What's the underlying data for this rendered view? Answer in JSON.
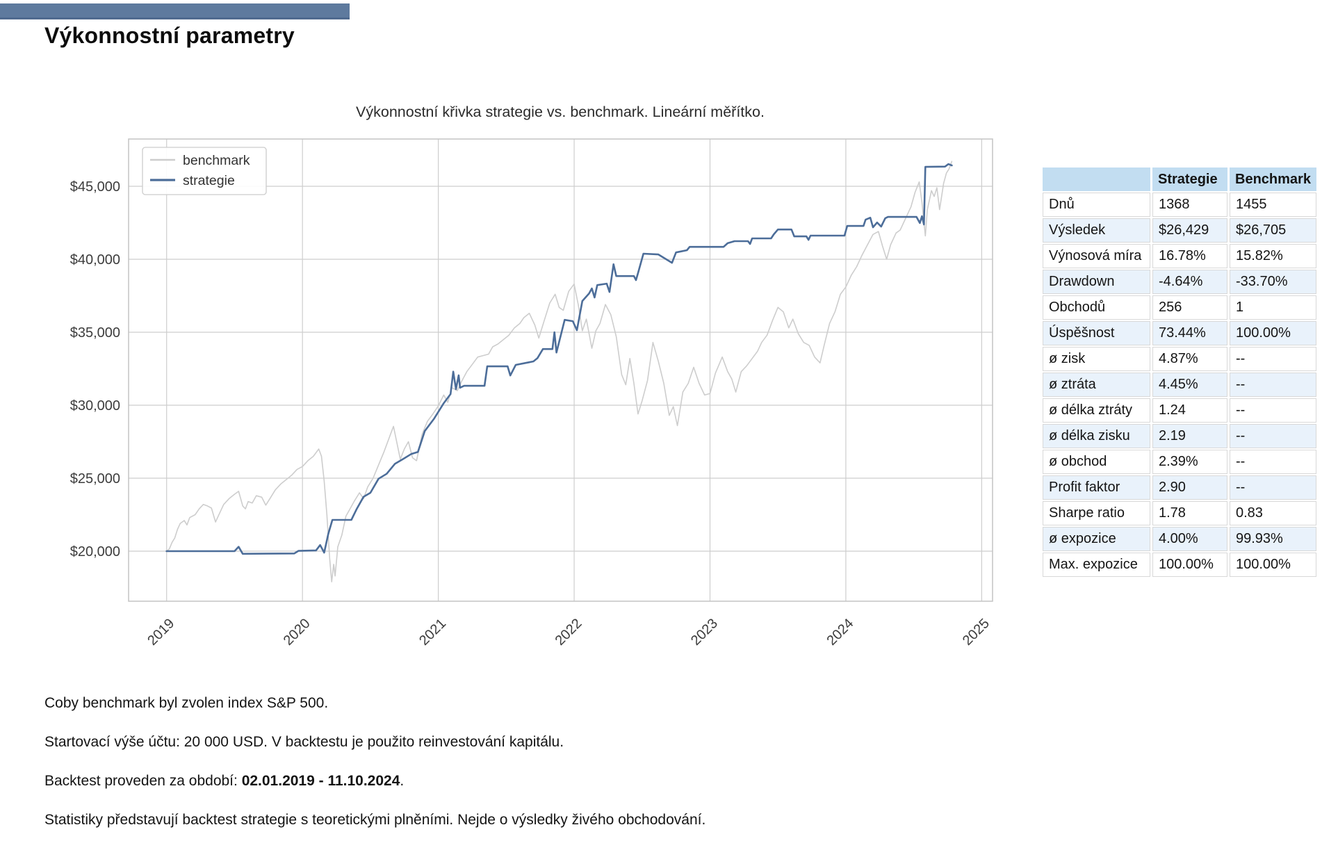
{
  "page": {
    "title": "Výkonnostní parametry"
  },
  "colors": {
    "accent_bar": "#5e7a9e",
    "table_header_bg": "#c2ddf1",
    "table_row_alt_bg": "#e9f2fb",
    "benchmark_line": "#cdcdcd",
    "strategie_line": "#4c6d99"
  },
  "chart_data": {
    "type": "line",
    "title": "Výkonnostní křivka strategie vs. benchmark. Lineární měřítko.",
    "xlabel": "",
    "ylabel": "",
    "grid": true,
    "legend_position": "upper left",
    "xlim": [
      2018.72,
      2025.08
    ],
    "ylim": [
      16570,
      48240
    ],
    "xticks": [
      2019,
      2020,
      2021,
      2022,
      2023,
      2024,
      2025
    ],
    "xticklabels": [
      "2019",
      "2020",
      "2021",
      "2022",
      "2023",
      "2024",
      "2025"
    ],
    "yticks": [
      20000,
      25000,
      30000,
      35000,
      40000,
      45000
    ],
    "yticklabels": [
      "$20,000",
      "$25,000",
      "$30,000",
      "$35,000",
      "$40,000",
      "$45,000"
    ],
    "series": [
      {
        "name": "benchmark",
        "color": "#cdcdcd",
        "points": [
          [
            2019.0,
            20000
          ],
          [
            2019.02,
            20150
          ],
          [
            2019.04,
            20600
          ],
          [
            2019.06,
            20900
          ],
          [
            2019.08,
            21500
          ],
          [
            2019.1,
            21900
          ],
          [
            2019.13,
            22100
          ],
          [
            2019.15,
            21800
          ],
          [
            2019.17,
            22300
          ],
          [
            2019.21,
            22500
          ],
          [
            2019.24,
            22900
          ],
          [
            2019.27,
            23200
          ],
          [
            2019.3,
            23100
          ],
          [
            2019.33,
            22950
          ],
          [
            2019.36,
            22000
          ],
          [
            2019.38,
            22400
          ],
          [
            2019.42,
            23200
          ],
          [
            2019.46,
            23600
          ],
          [
            2019.5,
            23900
          ],
          [
            2019.53,
            24100
          ],
          [
            2019.56,
            23100
          ],
          [
            2019.58,
            22900
          ],
          [
            2019.6,
            23400
          ],
          [
            2019.63,
            23300
          ],
          [
            2019.66,
            23800
          ],
          [
            2019.7,
            23700
          ],
          [
            2019.73,
            23150
          ],
          [
            2019.76,
            23600
          ],
          [
            2019.8,
            24200
          ],
          [
            2019.84,
            24600
          ],
          [
            2019.88,
            24900
          ],
          [
            2019.92,
            25200
          ],
          [
            2019.96,
            25600
          ],
          [
            2020.0,
            25800
          ],
          [
            2020.04,
            26200
          ],
          [
            2020.08,
            26500
          ],
          [
            2020.12,
            27000
          ],
          [
            2020.14,
            26500
          ],
          [
            2020.16,
            24800
          ],
          [
            2020.18,
            22500
          ],
          [
            2020.2,
            19500
          ],
          [
            2020.215,
            17900
          ],
          [
            2020.23,
            19100
          ],
          [
            2020.24,
            18300
          ],
          [
            2020.26,
            20300
          ],
          [
            2020.29,
            21100
          ],
          [
            2020.32,
            22400
          ],
          [
            2020.35,
            22900
          ],
          [
            2020.38,
            23400
          ],
          [
            2020.42,
            24000
          ],
          [
            2020.45,
            23600
          ],
          [
            2020.48,
            24400
          ],
          [
            2020.52,
            25000
          ],
          [
            2020.56,
            25900
          ],
          [
            2020.6,
            26800
          ],
          [
            2020.64,
            27800
          ],
          [
            2020.67,
            28550
          ],
          [
            2020.7,
            27200
          ],
          [
            2020.72,
            26300
          ],
          [
            2020.75,
            27000
          ],
          [
            2020.78,
            27500
          ],
          [
            2020.81,
            26400
          ],
          [
            2020.84,
            26200
          ],
          [
            2020.88,
            28000
          ],
          [
            2020.92,
            28900
          ],
          [
            2020.96,
            29400
          ],
          [
            2021.0,
            29950
          ],
          [
            2021.04,
            30700
          ],
          [
            2021.07,
            30200
          ],
          [
            2021.1,
            31200
          ],
          [
            2021.14,
            31000
          ],
          [
            2021.17,
            31600
          ],
          [
            2021.21,
            32300
          ],
          [
            2021.25,
            32800
          ],
          [
            2021.29,
            33300
          ],
          [
            2021.33,
            33400
          ],
          [
            2021.37,
            33500
          ],
          [
            2021.4,
            34000
          ],
          [
            2021.44,
            34200
          ],
          [
            2021.48,
            34500
          ],
          [
            2021.52,
            34800
          ],
          [
            2021.56,
            35300
          ],
          [
            2021.6,
            35600
          ],
          [
            2021.63,
            36000
          ],
          [
            2021.67,
            36300
          ],
          [
            2021.71,
            35500
          ],
          [
            2021.74,
            34600
          ],
          [
            2021.78,
            35800
          ],
          [
            2021.82,
            37000
          ],
          [
            2021.86,
            37600
          ],
          [
            2021.89,
            36700
          ],
          [
            2021.92,
            36500
          ],
          [
            2021.96,
            37800
          ],
          [
            2022.0,
            38300
          ],
          [
            2022.03,
            36900
          ],
          [
            2022.06,
            35100
          ],
          [
            2022.09,
            35900
          ],
          [
            2022.13,
            33900
          ],
          [
            2022.16,
            35100
          ],
          [
            2022.19,
            35600
          ],
          [
            2022.23,
            36900
          ],
          [
            2022.27,
            36200
          ],
          [
            2022.31,
            34700
          ],
          [
            2022.35,
            32100
          ],
          [
            2022.38,
            31400
          ],
          [
            2022.41,
            33200
          ],
          [
            2022.44,
            31500
          ],
          [
            2022.47,
            29400
          ],
          [
            2022.5,
            30300
          ],
          [
            2022.54,
            31700
          ],
          [
            2022.58,
            34300
          ],
          [
            2022.62,
            33000
          ],
          [
            2022.66,
            31500
          ],
          [
            2022.7,
            29300
          ],
          [
            2022.73,
            29900
          ],
          [
            2022.76,
            28600
          ],
          [
            2022.8,
            30900
          ],
          [
            2022.84,
            31500
          ],
          [
            2022.88,
            32600
          ],
          [
            2022.92,
            31500
          ],
          [
            2022.96,
            30700
          ],
          [
            2023.0,
            30800
          ],
          [
            2023.04,
            32200
          ],
          [
            2023.09,
            33300
          ],
          [
            2023.13,
            32300
          ],
          [
            2023.16,
            31800
          ],
          [
            2023.19,
            30900
          ],
          [
            2023.23,
            32300
          ],
          [
            2023.27,
            32700
          ],
          [
            2023.31,
            33200
          ],
          [
            2023.35,
            33700
          ],
          [
            2023.38,
            34300
          ],
          [
            2023.42,
            34800
          ],
          [
            2023.46,
            35800
          ],
          [
            2023.5,
            36700
          ],
          [
            2023.54,
            36400
          ],
          [
            2023.58,
            35300
          ],
          [
            2023.61,
            35900
          ],
          [
            2023.65,
            34900
          ],
          [
            2023.69,
            34300
          ],
          [
            2023.73,
            34100
          ],
          [
            2023.77,
            33300
          ],
          [
            2023.81,
            32900
          ],
          [
            2023.84,
            34100
          ],
          [
            2023.88,
            35600
          ],
          [
            2023.92,
            36400
          ],
          [
            2023.96,
            37600
          ],
          [
            2024.0,
            38100
          ],
          [
            2024.04,
            38900
          ],
          [
            2024.08,
            39500
          ],
          [
            2024.12,
            40300
          ],
          [
            2024.16,
            41000
          ],
          [
            2024.2,
            41700
          ],
          [
            2024.24,
            41900
          ],
          [
            2024.27,
            40900
          ],
          [
            2024.3,
            40000
          ],
          [
            2024.33,
            41000
          ],
          [
            2024.37,
            41800
          ],
          [
            2024.4,
            42000
          ],
          [
            2024.44,
            42800
          ],
          [
            2024.48,
            43600
          ],
          [
            2024.51,
            44600
          ],
          [
            2024.54,
            45300
          ],
          [
            2024.56,
            43900
          ],
          [
            2024.585,
            41600
          ],
          [
            2024.6,
            43400
          ],
          [
            2024.63,
            44700
          ],
          [
            2024.65,
            44300
          ],
          [
            2024.67,
            44900
          ],
          [
            2024.69,
            43400
          ],
          [
            2024.72,
            45200
          ],
          [
            2024.74,
            45900
          ],
          [
            2024.76,
            46200
          ],
          [
            2024.78,
            46705
          ]
        ]
      },
      {
        "name": "strategie",
        "color": "#4c6d99",
        "points": [
          [
            2019.0,
            20000
          ],
          [
            2019.5,
            20000
          ],
          [
            2019.53,
            20300
          ],
          [
            2019.56,
            19820
          ],
          [
            2019.94,
            19840
          ],
          [
            2019.97,
            20020
          ],
          [
            2020.1,
            20050
          ],
          [
            2020.13,
            20420
          ],
          [
            2020.16,
            19900
          ],
          [
            2020.19,
            21180
          ],
          [
            2020.22,
            22140
          ],
          [
            2020.36,
            22140
          ],
          [
            2020.4,
            22900
          ],
          [
            2020.45,
            23730
          ],
          [
            2020.5,
            24000
          ],
          [
            2020.56,
            24960
          ],
          [
            2020.62,
            25300
          ],
          [
            2020.68,
            25980
          ],
          [
            2020.74,
            26310
          ],
          [
            2020.8,
            26650
          ],
          [
            2020.85,
            26800
          ],
          [
            2020.9,
            28230
          ],
          [
            2020.97,
            29090
          ],
          [
            2021.04,
            30140
          ],
          [
            2021.09,
            30760
          ],
          [
            2021.11,
            32300
          ],
          [
            2021.13,
            31100
          ],
          [
            2021.15,
            32050
          ],
          [
            2021.16,
            31200
          ],
          [
            2021.19,
            31330
          ],
          [
            2021.34,
            31330
          ],
          [
            2021.36,
            32660
          ],
          [
            2021.51,
            32660
          ],
          [
            2021.53,
            32040
          ],
          [
            2021.57,
            32760
          ],
          [
            2021.7,
            33000
          ],
          [
            2021.73,
            33230
          ],
          [
            2021.77,
            33850
          ],
          [
            2021.84,
            33850
          ],
          [
            2021.855,
            35000
          ],
          [
            2021.87,
            33610
          ],
          [
            2021.93,
            35850
          ],
          [
            2021.99,
            35760
          ],
          [
            2022.02,
            35140
          ],
          [
            2022.06,
            37140
          ],
          [
            2022.11,
            37660
          ],
          [
            2022.13,
            38000
          ],
          [
            2022.15,
            37380
          ],
          [
            2022.17,
            38230
          ],
          [
            2022.24,
            38330
          ],
          [
            2022.26,
            37760
          ],
          [
            2022.29,
            39660
          ],
          [
            2022.31,
            38850
          ],
          [
            2022.44,
            38850
          ],
          [
            2022.455,
            38570
          ],
          [
            2022.47,
            39050
          ],
          [
            2022.51,
            40380
          ],
          [
            2022.62,
            40330
          ],
          [
            2022.72,
            39760
          ],
          [
            2022.75,
            40470
          ],
          [
            2022.83,
            40620
          ],
          [
            2022.85,
            40850
          ],
          [
            2023.1,
            40850
          ],
          [
            2023.13,
            41100
          ],
          [
            2023.18,
            41240
          ],
          [
            2023.28,
            41240
          ],
          [
            2023.295,
            41050
          ],
          [
            2023.31,
            41430
          ],
          [
            2023.45,
            41430
          ],
          [
            2023.47,
            41710
          ],
          [
            2023.5,
            42040
          ],
          [
            2023.6,
            42040
          ],
          [
            2023.62,
            41570
          ],
          [
            2023.71,
            41570
          ],
          [
            2023.725,
            41330
          ],
          [
            2023.74,
            41620
          ],
          [
            2023.99,
            41620
          ],
          [
            2024.01,
            42280
          ],
          [
            2024.13,
            42280
          ],
          [
            2024.145,
            42710
          ],
          [
            2024.18,
            42850
          ],
          [
            2024.2,
            42190
          ],
          [
            2024.23,
            42520
          ],
          [
            2024.26,
            42240
          ],
          [
            2024.29,
            42810
          ],
          [
            2024.31,
            42900
          ],
          [
            2024.52,
            42900
          ],
          [
            2024.545,
            42480
          ],
          [
            2024.56,
            42950
          ],
          [
            2024.575,
            42380
          ],
          [
            2024.585,
            46330
          ],
          [
            2024.73,
            46350
          ],
          [
            2024.755,
            46520
          ],
          [
            2024.78,
            46429
          ]
        ]
      }
    ]
  },
  "table": {
    "headers": [
      "",
      "Strategie",
      "Benchmark"
    ],
    "rows": [
      [
        "Dnů",
        "1368",
        "1455"
      ],
      [
        "Výsledek",
        "$26,429",
        "$26,705"
      ],
      [
        "Výnosová míra",
        "16.78%",
        "15.82%"
      ],
      [
        "Drawdown",
        "-4.64%",
        "-33.70%"
      ],
      [
        "Obchodů",
        "256",
        "1"
      ],
      [
        "Úspěšnost",
        "73.44%",
        "100.00%"
      ],
      [
        "ø zisk",
        "4.87%",
        "--"
      ],
      [
        "ø ztráta",
        "4.45%",
        "--"
      ],
      [
        "ø délka ztráty",
        "1.24",
        "--"
      ],
      [
        "ø délka zisku",
        "2.19",
        "--"
      ],
      [
        "ø obchod",
        "2.39%",
        "--"
      ],
      [
        "Profit faktor",
        "2.90",
        "--"
      ],
      [
        "Sharpe ratio",
        "1.78",
        "0.83"
      ],
      [
        "ø expozice",
        "4.00%",
        "99.93%"
      ],
      [
        "Max. expozice",
        "100.00%",
        "100.00%"
      ]
    ]
  },
  "notes": {
    "benchmark": "Coby benchmark byl zvolen index S&P 500.",
    "start": "Startovací výše účtu: 20 000 USD. V backtestu je použito reinvestování kapitálu.",
    "period_prefix": "Backtest proveden za období: ",
    "period_bold": "02.01.2019 - 11.10.2024",
    "period_suffix": ".",
    "disclaimer": "Statistiky představují backtest strategie s teoretickými plněními. Nejde o výsledky živého obchodování."
  }
}
